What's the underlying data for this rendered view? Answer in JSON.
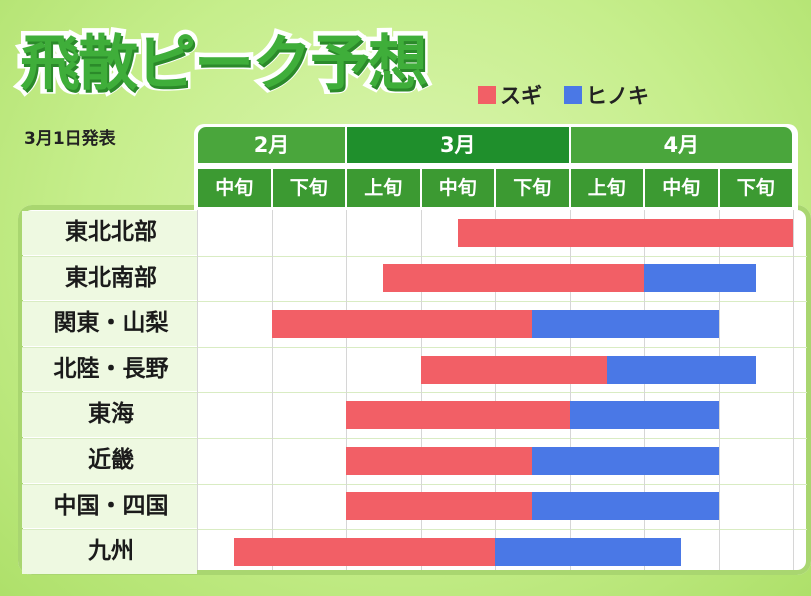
{
  "title": "飛散ピーク予想",
  "announcement": "3月1日発表",
  "legend": [
    {
      "label": "スギ",
      "color": "#f25f66"
    },
    {
      "label": "ヒノキ",
      "color": "#4a78e6"
    }
  ],
  "chart_data": {
    "type": "bar",
    "months": [
      {
        "label": "2月",
        "color": "#4aa63c"
      },
      {
        "label": "3月",
        "color": "#1f8f2c"
      },
      {
        "label": "4月",
        "color": "#4aa63c"
      }
    ],
    "periods": [
      "中旬",
      "下旬",
      "上旬",
      "中旬",
      "下旬",
      "上旬",
      "中旬",
      "下旬"
    ],
    "x_range": [
      0,
      8
    ],
    "x_unit": "旬 (10-day period index from 2月中旬)",
    "regions": [
      {
        "label": "東北北部",
        "sugi": [
          3.5,
          8.0
        ],
        "hinoki": null
      },
      {
        "label": "東北南部",
        "sugi": [
          2.5,
          6.0
        ],
        "hinoki": [
          6.0,
          7.5
        ]
      },
      {
        "label": "関東・山梨",
        "sugi": [
          1.0,
          4.5
        ],
        "hinoki": [
          4.5,
          7.0
        ]
      },
      {
        "label": "北陸・長野",
        "sugi": [
          3.0,
          5.5
        ],
        "hinoki": [
          5.5,
          7.5
        ]
      },
      {
        "label": "東海",
        "sugi": [
          2.0,
          5.0
        ],
        "hinoki": [
          5.0,
          7.0
        ]
      },
      {
        "label": "近畿",
        "sugi": [
          2.0,
          4.5
        ],
        "hinoki": [
          4.5,
          7.0
        ]
      },
      {
        "label": "中国・四国",
        "sugi": [
          2.0,
          4.5
        ],
        "hinoki": [
          4.5,
          7.0
        ]
      },
      {
        "label": "九州",
        "sugi": [
          0.5,
          4.0
        ],
        "hinoki": [
          4.0,
          6.5
        ]
      }
    ],
    "grid": true
  }
}
